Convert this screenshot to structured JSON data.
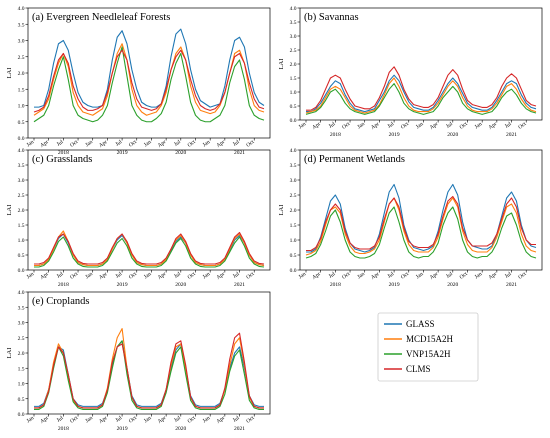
{
  "figure": {
    "ylabel": "LAI",
    "yticks": [
      "0.0",
      "0.5",
      "1.0",
      "1.5",
      "2.0",
      "2.5",
      "3.0",
      "3.5",
      "4.0"
    ],
    "ylim": [
      0,
      4
    ],
    "month_labels": [
      "Jan",
      "Apr",
      "Jul",
      "Oct"
    ],
    "years": [
      "2018",
      "2019",
      "2020",
      "2021"
    ],
    "legend": {
      "placement": "lower-right",
      "entries": [
        {
          "name": "GLASS",
          "color": "#1f77b4"
        },
        {
          "name": "MCD15A2H",
          "color": "#ff7f0e"
        },
        {
          "name": "VNP15A2H",
          "color": "#2ca02c"
        },
        {
          "name": "CLMS",
          "color": "#d62728"
        }
      ]
    }
  },
  "chart_data": [
    {
      "type": "line",
      "title": "(a) Evergreen Needleleaf Forests",
      "ylim": [
        0,
        4
      ],
      "x": "monthly, Jan 2018 - Dec 2021",
      "series": [
        {
          "name": "GLASS",
          "values": [
            0.95,
            0.95,
            1.0,
            1.5,
            2.3,
            2.9,
            3.0,
            2.7,
            2.0,
            1.4,
            1.1,
            1.0,
            0.95,
            0.95,
            1.0,
            1.5,
            2.4,
            3.1,
            3.3,
            2.9,
            2.1,
            1.5,
            1.1,
            1.0,
            0.95,
            0.95,
            1.05,
            1.6,
            2.5,
            3.2,
            3.35,
            2.9,
            2.1,
            1.5,
            1.15,
            1.05,
            0.95,
            1.0,
            1.05,
            1.6,
            2.4,
            3.0,
            3.1,
            2.8,
            2.0,
            1.4,
            1.1,
            1.0
          ]
        },
        {
          "name": "MCD15A2H",
          "values": [
            0.7,
            0.8,
            0.9,
            1.2,
            1.8,
            2.3,
            2.6,
            2.2,
            1.4,
            1.0,
            0.8,
            0.75,
            0.7,
            0.8,
            0.9,
            1.3,
            2.0,
            2.6,
            2.9,
            2.4,
            1.5,
            1.0,
            0.8,
            0.7,
            0.75,
            0.8,
            1.0,
            1.4,
            2.1,
            2.6,
            2.8,
            2.4,
            1.6,
            1.1,
            0.85,
            0.8,
            0.75,
            0.8,
            1.0,
            1.4,
            2.0,
            2.6,
            2.7,
            2.3,
            1.5,
            1.0,
            0.85,
            0.8
          ]
        },
        {
          "name": "VNP15A2H",
          "values": [
            0.5,
            0.6,
            0.7,
            1.0,
            1.6,
            2.1,
            2.5,
            1.8,
            1.0,
            0.7,
            0.6,
            0.55,
            0.5,
            0.55,
            0.7,
            1.0,
            1.7,
            2.3,
            2.8,
            1.9,
            1.0,
            0.7,
            0.55,
            0.5,
            0.5,
            0.6,
            0.75,
            1.1,
            1.8,
            2.3,
            2.6,
            1.9,
            1.1,
            0.7,
            0.55,
            0.5,
            0.5,
            0.6,
            0.7,
            1.0,
            1.7,
            2.2,
            2.4,
            1.8,
            1.0,
            0.7,
            0.6,
            0.55
          ]
        },
        {
          "name": "CLMS",
          "values": [
            0.8,
            0.85,
            0.95,
            1.3,
            1.9,
            2.4,
            2.6,
            2.3,
            1.6,
            1.2,
            0.95,
            0.85,
            0.85,
            0.9,
            1.0,
            1.4,
            2.0,
            2.5,
            2.7,
            2.4,
            1.7,
            1.2,
            0.95,
            0.9,
            0.85,
            0.9,
            1.05,
            1.5,
            2.1,
            2.5,
            2.7,
            2.4,
            1.8,
            1.3,
            1.0,
            0.9,
            0.85,
            0.9,
            1.05,
            1.4,
            2.0,
            2.5,
            2.6,
            2.3,
            1.7,
            1.2,
            0.95,
            0.9
          ]
        }
      ]
    },
    {
      "type": "line",
      "title": "(b) Savannas",
      "ylim": [
        0,
        4
      ],
      "x": "monthly, Jan 2018 - Dec 2021",
      "series": [
        {
          "name": "GLASS",
          "values": [
            0.3,
            0.3,
            0.4,
            0.6,
            0.9,
            1.2,
            1.4,
            1.3,
            0.9,
            0.6,
            0.4,
            0.35,
            0.3,
            0.35,
            0.4,
            0.7,
            1.0,
            1.4,
            1.6,
            1.4,
            1.0,
            0.65,
            0.45,
            0.4,
            0.35,
            0.35,
            0.45,
            0.7,
            1.0,
            1.3,
            1.5,
            1.3,
            0.95,
            0.6,
            0.45,
            0.4,
            0.35,
            0.35,
            0.45,
            0.7,
            1.0,
            1.3,
            1.4,
            1.3,
            0.9,
            0.6,
            0.45,
            0.4
          ]
        },
        {
          "name": "MCD15A2H",
          "values": [
            0.25,
            0.3,
            0.35,
            0.5,
            0.8,
            1.1,
            1.2,
            1.1,
            0.8,
            0.5,
            0.35,
            0.3,
            0.25,
            0.3,
            0.35,
            0.55,
            0.9,
            1.3,
            1.5,
            1.2,
            0.8,
            0.5,
            0.35,
            0.3,
            0.3,
            0.3,
            0.4,
            0.6,
            0.9,
            1.2,
            1.4,
            1.2,
            0.8,
            0.5,
            0.35,
            0.3,
            0.3,
            0.3,
            0.4,
            0.6,
            0.9,
            1.2,
            1.3,
            1.1,
            0.75,
            0.5,
            0.35,
            0.3
          ]
        },
        {
          "name": "VNP15A2H",
          "values": [
            0.2,
            0.25,
            0.3,
            0.45,
            0.7,
            1.0,
            1.1,
            0.9,
            0.6,
            0.4,
            0.3,
            0.25,
            0.2,
            0.25,
            0.3,
            0.5,
            0.8,
            1.1,
            1.3,
            1.0,
            0.6,
            0.4,
            0.3,
            0.25,
            0.2,
            0.25,
            0.3,
            0.5,
            0.8,
            1.0,
            1.2,
            1.0,
            0.6,
            0.4,
            0.3,
            0.25,
            0.2,
            0.25,
            0.3,
            0.5,
            0.8,
            1.0,
            1.1,
            0.9,
            0.6,
            0.4,
            0.3,
            0.25
          ]
        },
        {
          "name": "CLMS",
          "values": [
            0.35,
            0.35,
            0.45,
            0.7,
            1.1,
            1.5,
            1.6,
            1.5,
            1.1,
            0.75,
            0.5,
            0.45,
            0.4,
            0.4,
            0.5,
            0.8,
            1.2,
            1.7,
            1.9,
            1.6,
            1.1,
            0.75,
            0.55,
            0.5,
            0.45,
            0.45,
            0.55,
            0.8,
            1.2,
            1.6,
            1.8,
            1.6,
            1.1,
            0.7,
            0.55,
            0.5,
            0.45,
            0.45,
            0.55,
            0.8,
            1.2,
            1.5,
            1.65,
            1.5,
            1.1,
            0.7,
            0.55,
            0.5
          ]
        }
      ]
    },
    {
      "type": "line",
      "title": "(c) Grasslands",
      "ylim": [
        0,
        4
      ],
      "x": "monthly, Jan 2018 - Dec 2021",
      "series": [
        {
          "name": "GLASS",
          "values": [
            0.15,
            0.15,
            0.2,
            0.35,
            0.7,
            1.05,
            1.2,
            0.9,
            0.5,
            0.25,
            0.18,
            0.15,
            0.15,
            0.15,
            0.2,
            0.35,
            0.7,
            1.0,
            1.15,
            0.9,
            0.5,
            0.25,
            0.18,
            0.15,
            0.15,
            0.15,
            0.2,
            0.35,
            0.65,
            0.95,
            1.1,
            0.9,
            0.5,
            0.25,
            0.18,
            0.15,
            0.15,
            0.15,
            0.2,
            0.35,
            0.65,
            1.0,
            1.15,
            0.9,
            0.5,
            0.25,
            0.18,
            0.15
          ]
        },
        {
          "name": "MCD15A2H",
          "values": [
            0.15,
            0.15,
            0.2,
            0.35,
            0.7,
            1.1,
            1.3,
            0.95,
            0.5,
            0.25,
            0.18,
            0.15,
            0.15,
            0.15,
            0.2,
            0.35,
            0.7,
            1.05,
            1.2,
            0.9,
            0.5,
            0.25,
            0.18,
            0.15,
            0.15,
            0.15,
            0.2,
            0.35,
            0.7,
            1.0,
            1.15,
            0.9,
            0.5,
            0.25,
            0.18,
            0.15,
            0.15,
            0.15,
            0.2,
            0.35,
            0.7,
            1.05,
            1.2,
            0.9,
            0.5,
            0.25,
            0.18,
            0.15
          ]
        },
        {
          "name": "VNP15A2H",
          "values": [
            0.1,
            0.1,
            0.15,
            0.3,
            0.6,
            0.95,
            1.1,
            0.8,
            0.4,
            0.2,
            0.12,
            0.1,
            0.1,
            0.1,
            0.15,
            0.3,
            0.6,
            0.9,
            1.05,
            0.8,
            0.4,
            0.2,
            0.12,
            0.1,
            0.1,
            0.1,
            0.15,
            0.3,
            0.6,
            0.9,
            1.05,
            0.8,
            0.4,
            0.2,
            0.12,
            0.1,
            0.1,
            0.1,
            0.15,
            0.3,
            0.6,
            0.9,
            1.1,
            0.8,
            0.4,
            0.2,
            0.12,
            0.1
          ]
        },
        {
          "name": "CLMS",
          "values": [
            0.2,
            0.2,
            0.25,
            0.4,
            0.75,
            1.1,
            1.2,
            0.95,
            0.55,
            0.3,
            0.22,
            0.2,
            0.2,
            0.2,
            0.25,
            0.4,
            0.75,
            1.05,
            1.2,
            0.95,
            0.55,
            0.3,
            0.22,
            0.2,
            0.2,
            0.2,
            0.25,
            0.4,
            0.7,
            1.05,
            1.2,
            0.95,
            0.55,
            0.3,
            0.22,
            0.2,
            0.2,
            0.2,
            0.25,
            0.4,
            0.75,
            1.1,
            1.25,
            0.95,
            0.55,
            0.3,
            0.22,
            0.2
          ]
        }
      ]
    },
    {
      "type": "line",
      "title": "(d) Permanent Wetlands",
      "ylim": [
        0,
        4
      ],
      "x": "monthly, Jan 2018 - Dec 2021",
      "series": [
        {
          "name": "GLASS",
          "values": [
            0.6,
            0.6,
            0.7,
            1.1,
            1.7,
            2.3,
            2.5,
            2.2,
            1.4,
            0.9,
            0.7,
            0.65,
            0.6,
            0.65,
            0.75,
            1.2,
            1.9,
            2.6,
            2.85,
            2.4,
            1.5,
            1.0,
            0.75,
            0.7,
            0.65,
            0.7,
            0.8,
            1.3,
            2.0,
            2.6,
            2.85,
            2.5,
            1.6,
            1.0,
            0.8,
            0.75,
            0.7,
            0.7,
            0.8,
            1.2,
            1.8,
            2.4,
            2.6,
            2.3,
            1.5,
            1.0,
            0.8,
            0.75
          ]
        },
        {
          "name": "MCD15A2H",
          "values": [
            0.5,
            0.55,
            0.65,
            0.95,
            1.5,
            2.0,
            2.1,
            1.9,
            1.2,
            0.8,
            0.6,
            0.55,
            0.55,
            0.6,
            0.7,
            1.0,
            1.6,
            2.2,
            2.4,
            2.0,
            1.3,
            0.85,
            0.65,
            0.6,
            0.6,
            0.6,
            0.75,
            1.1,
            1.7,
            2.2,
            2.4,
            2.1,
            1.3,
            0.85,
            0.65,
            0.6,
            0.6,
            0.6,
            0.75,
            1.1,
            1.6,
            2.1,
            2.2,
            1.9,
            1.2,
            0.8,
            0.65,
            0.6
          ]
        },
        {
          "name": "VNP15A2H",
          "values": [
            0.4,
            0.45,
            0.55,
            0.85,
            1.3,
            1.8,
            2.0,
            1.6,
            1.0,
            0.6,
            0.45,
            0.4,
            0.4,
            0.45,
            0.55,
            0.85,
            1.4,
            1.9,
            2.1,
            1.6,
            1.0,
            0.6,
            0.45,
            0.4,
            0.45,
            0.45,
            0.6,
            0.9,
            1.5,
            1.9,
            2.1,
            1.7,
            1.0,
            0.6,
            0.45,
            0.4,
            0.45,
            0.45,
            0.6,
            0.9,
            1.4,
            1.8,
            1.9,
            1.5,
            0.95,
            0.6,
            0.45,
            0.4
          ]
        },
        {
          "name": "CLMS",
          "values": [
            0.65,
            0.65,
            0.75,
            1.05,
            1.6,
            2.0,
            2.2,
            2.0,
            1.3,
            0.9,
            0.75,
            0.7,
            0.7,
            0.7,
            0.8,
            1.1,
            1.7,
            2.2,
            2.4,
            2.1,
            1.4,
            0.95,
            0.8,
            0.75,
            0.75,
            0.75,
            0.85,
            1.2,
            1.8,
            2.3,
            2.45,
            2.2,
            1.4,
            1.0,
            0.8,
            0.8,
            0.8,
            0.8,
            0.9,
            1.2,
            1.7,
            2.2,
            2.4,
            2.1,
            1.4,
            1.0,
            0.85,
            0.85
          ]
        }
      ]
    },
    {
      "type": "line",
      "title": "(e) Croplands",
      "ylim": [
        0,
        4
      ],
      "x": "monthly, Jan 2018 - Dec 2021",
      "series": [
        {
          "name": "GLASS",
          "values": [
            0.25,
            0.25,
            0.35,
            0.8,
            1.6,
            2.2,
            2.1,
            1.3,
            0.5,
            0.3,
            0.25,
            0.25,
            0.25,
            0.25,
            0.35,
            0.8,
            1.6,
            2.2,
            2.4,
            1.5,
            0.6,
            0.3,
            0.25,
            0.25,
            0.25,
            0.25,
            0.35,
            0.8,
            1.5,
            2.1,
            2.3,
            1.5,
            0.6,
            0.3,
            0.25,
            0.25,
            0.25,
            0.25,
            0.35,
            0.8,
            1.5,
            2.0,
            2.2,
            1.5,
            0.6,
            0.3,
            0.25,
            0.25
          ]
        },
        {
          "name": "MCD15A2H",
          "values": [
            0.2,
            0.2,
            0.3,
            0.8,
            1.7,
            2.3,
            2.0,
            1.2,
            0.45,
            0.25,
            0.2,
            0.2,
            0.2,
            0.2,
            0.3,
            0.85,
            1.8,
            2.5,
            2.8,
            1.5,
            0.55,
            0.25,
            0.2,
            0.2,
            0.2,
            0.2,
            0.3,
            0.8,
            1.6,
            2.2,
            2.3,
            1.5,
            0.55,
            0.25,
            0.2,
            0.2,
            0.2,
            0.2,
            0.3,
            0.8,
            1.6,
            2.3,
            2.5,
            1.6,
            0.55,
            0.25,
            0.2,
            0.2
          ]
        },
        {
          "name": "VNP15A2H",
          "values": [
            0.15,
            0.15,
            0.25,
            0.7,
            1.5,
            2.2,
            1.9,
            1.1,
            0.4,
            0.2,
            0.15,
            0.15,
            0.15,
            0.15,
            0.25,
            0.7,
            1.5,
            2.2,
            2.4,
            1.3,
            0.45,
            0.2,
            0.15,
            0.15,
            0.15,
            0.15,
            0.25,
            0.7,
            1.4,
            2.0,
            2.2,
            1.3,
            0.45,
            0.2,
            0.15,
            0.15,
            0.15,
            0.15,
            0.25,
            0.65,
            1.4,
            1.9,
            2.1,
            1.3,
            0.45,
            0.2,
            0.15,
            0.15
          ]
        },
        {
          "name": "CLMS",
          "values": [
            0.2,
            0.2,
            0.3,
            0.75,
            1.6,
            2.2,
            2.0,
            1.3,
            0.5,
            0.25,
            0.2,
            0.2,
            0.2,
            0.2,
            0.3,
            0.8,
            1.7,
            2.2,
            2.3,
            1.5,
            0.55,
            0.25,
            0.2,
            0.2,
            0.2,
            0.2,
            0.3,
            0.8,
            1.7,
            2.3,
            2.4,
            1.6,
            0.55,
            0.25,
            0.2,
            0.2,
            0.2,
            0.2,
            0.3,
            0.85,
            1.8,
            2.5,
            2.65,
            1.7,
            0.6,
            0.25,
            0.2,
            0.2
          ]
        }
      ]
    }
  ]
}
